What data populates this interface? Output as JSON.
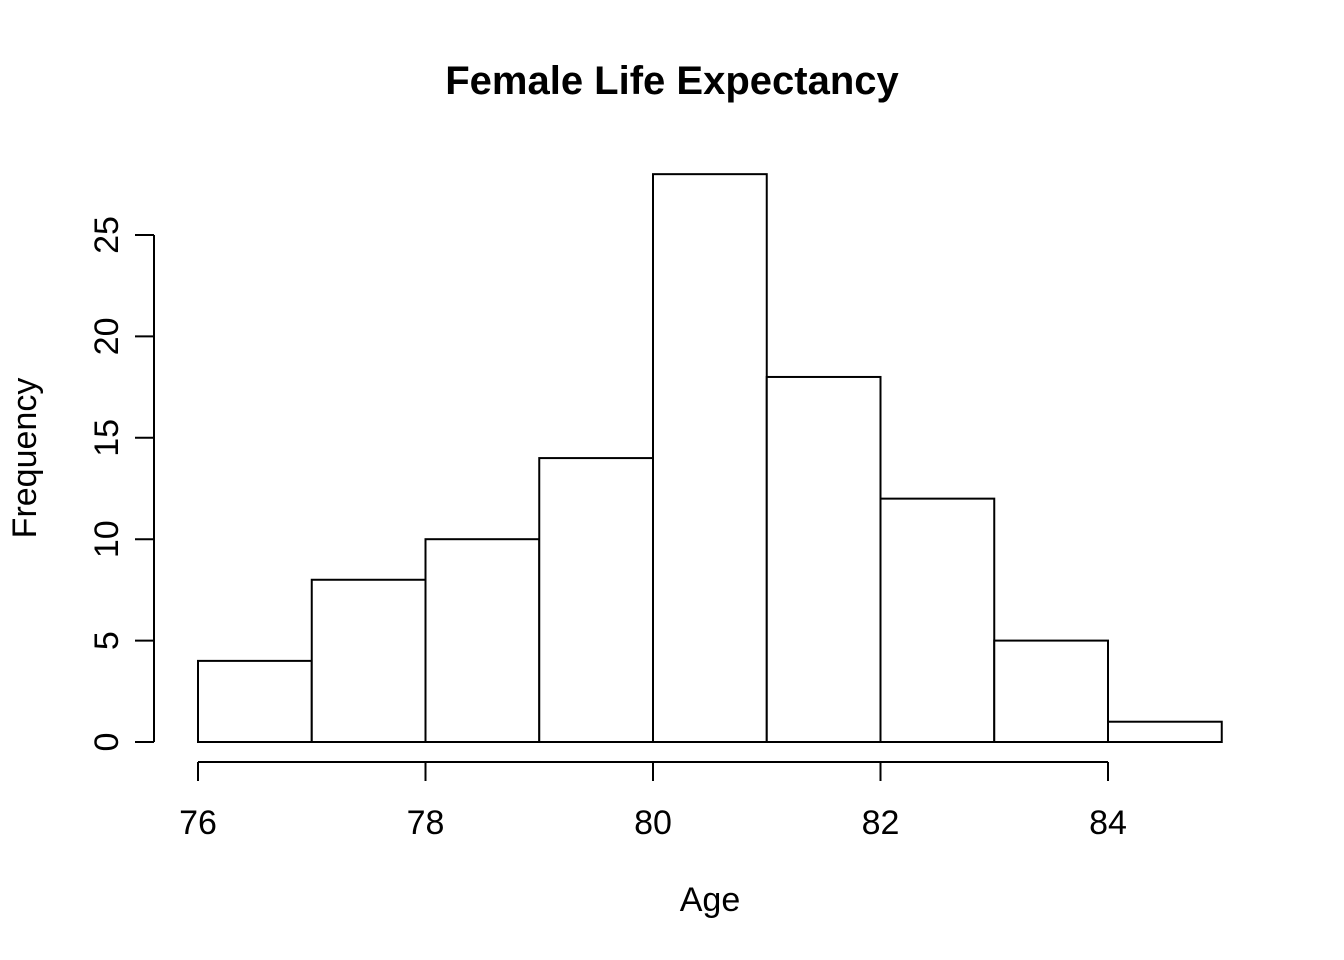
{
  "chart_data": {
    "type": "bar",
    "subtype": "histogram",
    "title": "Female Life Expectancy",
    "xlabel": "Age",
    "ylabel": "Frequency",
    "bin_edges": [
      76,
      77,
      78,
      79,
      80,
      81,
      82,
      83,
      84,
      85
    ],
    "counts": [
      4,
      8,
      10,
      14,
      28,
      18,
      12,
      5,
      1
    ],
    "x_ticks": [
      76,
      78,
      80,
      82,
      84
    ],
    "y_ticks": [
      0,
      5,
      10,
      15,
      20,
      25
    ],
    "xlim": [
      76,
      85
    ],
    "ylim": [
      0,
      28
    ],
    "legend": null,
    "grid": false,
    "bar_fill": "#ffffff",
    "bar_stroke": "#000000",
    "axis_color": "#000000",
    "background": "#ffffff"
  }
}
